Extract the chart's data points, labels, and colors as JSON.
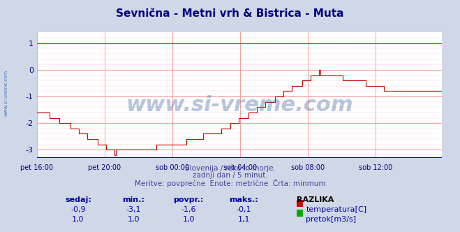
{
  "title": "Sevnična - Metni vrh & Bistrica - Muta",
  "title_color": "#000080",
  "bg_color": "#d0d8e8",
  "plot_bg_color": "#ffffff",
  "grid_color_major": "#ff9999",
  "grid_color_minor": "#ffcccc",
  "x_tick_labels": [
    "pet 16:00",
    "pet 20:00",
    "sob 00:00",
    "sob 04:00",
    "sob 08:00",
    "sob 12:00"
  ],
  "x_tick_positions": [
    0,
    48,
    96,
    144,
    192,
    240
  ],
  "ylim": [
    -3.3,
    1.4
  ],
  "yticks": [
    -3,
    -2,
    -1,
    0,
    1
  ],
  "ylabel_color": "#000080",
  "xlabel_color": "#000080",
  "watermark": "www.si-vreme.com",
  "watermark_color": "#3060a0",
  "watermark_alpha": 0.35,
  "subtitle_lines": [
    "Slovenija / reke in morje.",
    "zadnji dan / 5 minut.",
    "Meritve: povprečne  Enote: metrične  Črta: minmum"
  ],
  "subtitle_color": "#4040a0",
  "legend_header": "RAZLIKA",
  "legend_items": [
    {
      "label": "temperatura[C]",
      "color": "#cc0000"
    },
    {
      "label": "pretok[m3/s]",
      "color": "#00aa00"
    }
  ],
  "table_headers": [
    "sedaj:",
    "min.:",
    "povpr.:",
    "maks.:"
  ],
  "table_data": [
    [
      "-0,9",
      "-3,1",
      "-1,6",
      "-0,1"
    ],
    [
      "1,0",
      "1,0",
      "1,0",
      "1,1"
    ]
  ],
  "tick_color": "#000080",
  "n_points": 288,
  "side_label": "www.si-vreme.com",
  "side_label_color": "#3060a0"
}
